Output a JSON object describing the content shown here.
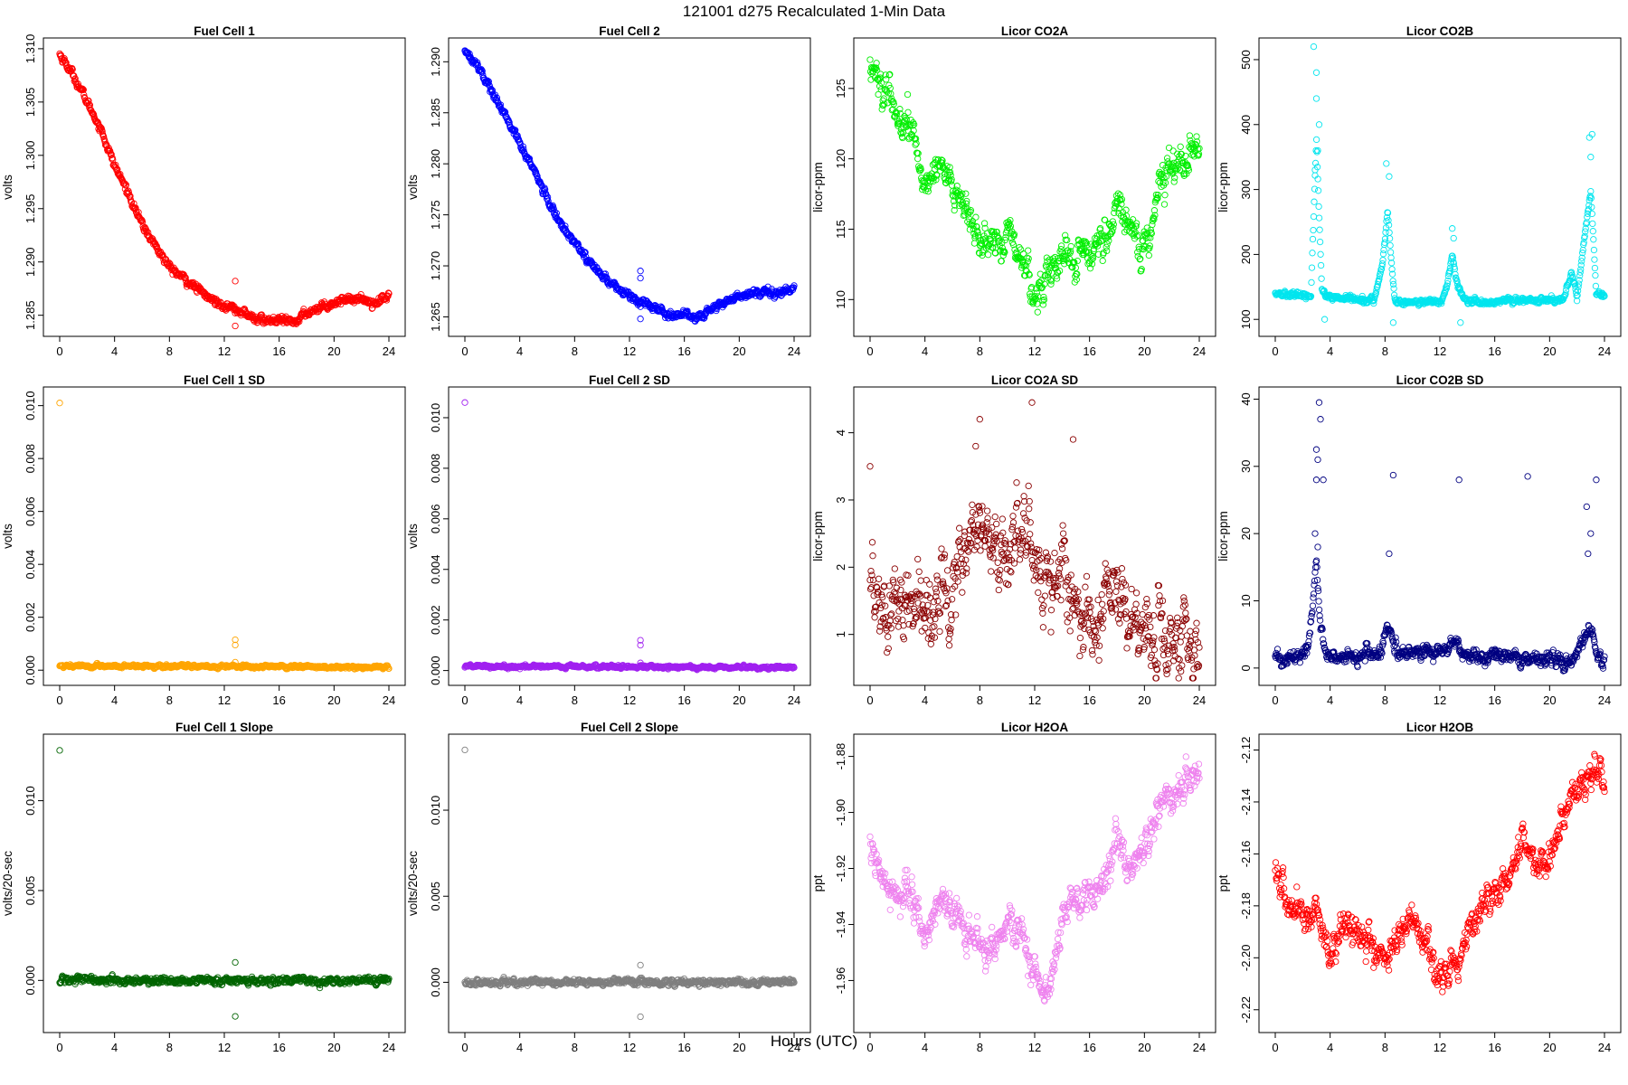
{
  "figure": {
    "title": "121001   d275   Recalculated 1-Min Data",
    "xlabel": "Hours (UTC)"
  },
  "chart_data": [
    {
      "type": "scatter",
      "title": "Fuel Cell 1",
      "ylabel": "volts",
      "color": "#ff0000",
      "xlim": [
        0,
        24
      ],
      "ylim": [
        1.2837,
        1.3105
      ],
      "xticks": [
        "0",
        "4",
        "8",
        "12",
        "16",
        "20",
        "24"
      ],
      "yticks": [
        "1.285",
        "1.290",
        "1.295",
        "1.300",
        "1.305",
        "1.310"
      ],
      "keypoints": [
        [
          0,
          1.3095
        ],
        [
          1,
          1.3075
        ],
        [
          2,
          1.305
        ],
        [
          3,
          1.3025
        ],
        [
          4,
          1.299
        ],
        [
          5,
          1.2965
        ],
        [
          6,
          1.2935
        ],
        [
          7,
          1.2915
        ],
        [
          8,
          1.2895
        ],
        [
          9,
          1.2885
        ],
        [
          10,
          1.2875
        ],
        [
          11,
          1.2865
        ],
        [
          12,
          1.286
        ],
        [
          13,
          1.2855
        ],
        [
          14,
          1.2848
        ],
        [
          15,
          1.2845
        ],
        [
          16,
          1.2845
        ],
        [
          17,
          1.2843
        ],
        [
          18,
          1.2852
        ],
        [
          19,
          1.2858
        ],
        [
          20,
          1.2862
        ],
        [
          21,
          1.2866
        ],
        [
          22,
          1.2865
        ],
        [
          23,
          1.2862
        ],
        [
          24,
          1.2868
        ]
      ],
      "noise": 0.00025,
      "outliers": [
        [
          12.8,
          1.2882
        ],
        [
          12.8,
          1.2852
        ],
        [
          12.8,
          1.284
        ]
      ]
    },
    {
      "type": "scatter",
      "title": "Fuel Cell 2",
      "ylabel": "volts",
      "color": "#0000ff",
      "xlim": [
        0,
        24
      ],
      "ylim": [
        1.2638,
        1.2918
      ],
      "xticks": [
        "0",
        "4",
        "8",
        "12",
        "16",
        "20",
        "24"
      ],
      "yticks": [
        "1.265",
        "1.270",
        "1.275",
        "1.280",
        "1.285",
        "1.290"
      ],
      "keypoints": [
        [
          0,
          1.2912
        ],
        [
          1,
          1.2895
        ],
        [
          2,
          1.287
        ],
        [
          3,
          1.2845
        ],
        [
          4,
          1.282
        ],
        [
          5,
          1.2795
        ],
        [
          6,
          1.2765
        ],
        [
          7,
          1.274
        ],
        [
          8,
          1.2725
        ],
        [
          9,
          1.2705
        ],
        [
          10,
          1.269
        ],
        [
          11,
          1.268
        ],
        [
          12,
          1.267
        ],
        [
          13,
          1.2665
        ],
        [
          14,
          1.2658
        ],
        [
          15,
          1.2652
        ],
        [
          16,
          1.2652
        ],
        [
          17,
          1.265
        ],
        [
          18,
          1.2658
        ],
        [
          19,
          1.2665
        ],
        [
          20,
          1.267
        ],
        [
          21,
          1.2673
        ],
        [
          22,
          1.2677
        ],
        [
          23,
          1.2672
        ],
        [
          24,
          1.268
        ]
      ],
      "noise": 0.00025,
      "outliers": [
        [
          12.8,
          1.2695
        ],
        [
          12.8,
          1.2688
        ],
        [
          12.8,
          1.266
        ],
        [
          12.8,
          1.2648
        ]
      ]
    },
    {
      "type": "scatter",
      "title": "Licor CO2A",
      "ylabel": "licor-ppm",
      "color": "#00ee00",
      "xlim": [
        0,
        24
      ],
      "ylim": [
        107.9,
        128.2
      ],
      "xticks": [
        "0",
        "4",
        "8",
        "12",
        "16",
        "20",
        "24"
      ],
      "yticks": [
        "110",
        "115",
        "120",
        "125"
      ],
      "keypoints": [
        [
          0,
          127
        ],
        [
          1,
          124.5
        ],
        [
          2,
          123
        ],
        [
          3,
          122
        ],
        [
          4,
          118
        ],
        [
          5,
          120
        ],
        [
          6,
          118
        ],
        [
          7,
          116
        ],
        [
          8,
          114
        ],
        [
          9,
          114
        ],
        [
          10,
          114.5
        ],
        [
          11,
          113
        ],
        [
          12,
          110
        ],
        [
          13,
          112
        ],
        [
          14,
          113
        ],
        [
          15,
          113
        ],
        [
          16,
          113.5
        ],
        [
          17,
          114
        ],
        [
          18,
          116.5
        ],
        [
          19,
          115.5
        ],
        [
          20,
          113
        ],
        [
          21,
          118
        ],
        [
          22,
          120
        ],
        [
          23,
          120
        ],
        [
          24,
          120.5
        ]
      ],
      "noise": 0.8,
      "outliers": []
    },
    {
      "type": "scatter",
      "title": "Licor CO2B",
      "ylabel": "licor-ppm",
      "color": "#00e5ee",
      "xlim": [
        0,
        24
      ],
      "ylim": [
        85,
        525
      ],
      "xticks": [
        "0",
        "4",
        "8",
        "12",
        "16",
        "20",
        "24"
      ],
      "yticks": [
        "100",
        "200",
        "300",
        "400",
        "500"
      ],
      "keypoints": [
        [
          0,
          140
        ],
        [
          2,
          136
        ],
        [
          2.6,
          136
        ],
        [
          3.0,
          380
        ],
        [
          3.4,
          140
        ],
        [
          4,
          133
        ],
        [
          7.2,
          130
        ],
        [
          7.8,
          180
        ],
        [
          8.2,
          265
        ],
        [
          8.7,
          130
        ],
        [
          9,
          126
        ],
        [
          12,
          126
        ],
        [
          12.5,
          150
        ],
        [
          12.9,
          200
        ],
        [
          13.3,
          150
        ],
        [
          14,
          126
        ],
        [
          17,
          128
        ],
        [
          20,
          130
        ],
        [
          21,
          132
        ],
        [
          21.6,
          170
        ],
        [
          22,
          135
        ],
        [
          22.5,
          220
        ],
        [
          23,
          300
        ],
        [
          23.4,
          140
        ],
        [
          24,
          135
        ]
      ],
      "noise": 3,
      "outliers": [
        [
          2.8,
          520
        ],
        [
          3.0,
          480
        ],
        [
          3.0,
          440
        ],
        [
          3.2,
          400
        ],
        [
          3.1,
          360
        ],
        [
          2.9,
          330
        ],
        [
          8.1,
          340
        ],
        [
          8.3,
          320
        ],
        [
          12.9,
          240
        ],
        [
          13.0,
          225
        ],
        [
          23.1,
          385
        ],
        [
          22.9,
          380
        ],
        [
          23.0,
          350
        ],
        [
          3.6,
          100
        ],
        [
          13.5,
          95
        ],
        [
          8.6,
          95
        ]
      ]
    },
    {
      "type": "scatter",
      "title": "Fuel Cell 1 SD",
      "ylabel": "volts",
      "color": "#ffa500",
      "xlim": [
        0,
        24
      ],
      "ylim": [
        -0.0003,
        0.0105
      ],
      "xticks": [
        "0",
        "4",
        "8",
        "12",
        "16",
        "20",
        "24"
      ],
      "yticks": [
        "0.000",
        "0.002",
        "0.004",
        "0.006",
        "0.008",
        "0.010"
      ],
      "keypoints": [
        [
          0,
          0.00016
        ],
        [
          24,
          0.00012
        ]
      ],
      "noise": 4e-05,
      "outliers": [
        [
          0,
          0.0101
        ],
        [
          12.8,
          0.00115
        ],
        [
          12.8,
          0.00095
        ],
        [
          12.8,
          0.0003
        ]
      ]
    },
    {
      "type": "scatter",
      "title": "Fuel Cell 2 SD",
      "ylabel": "volts",
      "color": "#a020f0",
      "xlim": [
        0,
        24
      ],
      "ylim": [
        -0.0003,
        0.011
      ],
      "xticks": [
        "0",
        "4",
        "8",
        "12",
        "16",
        "20",
        "24"
      ],
      "yticks": [
        "0.000",
        "0.002",
        "0.004",
        "0.006",
        "0.008",
        "0.010"
      ],
      "keypoints": [
        [
          0,
          0.00017
        ],
        [
          24,
          0.00012
        ]
      ],
      "noise": 4e-05,
      "outliers": [
        [
          0,
          0.0106
        ],
        [
          12.8,
          0.0012
        ],
        [
          12.8,
          0.001
        ],
        [
          12.8,
          0.0003
        ]
      ]
    },
    {
      "type": "scatter",
      "title": "Licor CO2A SD",
      "ylabel": "licor-ppm",
      "color": "#8b0000",
      "xlim": [
        0,
        24
      ],
      "ylim": [
        0.35,
        4.6
      ],
      "xticks": [
        "0",
        "4",
        "8",
        "12",
        "16",
        "20",
        "24"
      ],
      "yticks": [
        "1",
        "2",
        "3",
        "4"
      ],
      "keypoints": [
        [
          0,
          1.4
        ],
        [
          2,
          1.3
        ],
        [
          4,
          1.5
        ],
        [
          6,
          1.9
        ],
        [
          8,
          2.4
        ],
        [
          10,
          2.2
        ],
        [
          11,
          2.6
        ],
        [
          12,
          2.2
        ],
        [
          13,
          1.8
        ],
        [
          14,
          1.9
        ],
        [
          16,
          1.1
        ],
        [
          18,
          1.6
        ],
        [
          20,
          1.0
        ],
        [
          22,
          1.0
        ],
        [
          24,
          1.0
        ]
      ],
      "noise": 0.38,
      "outliers": [
        [
          0,
          3.5
        ],
        [
          8,
          4.2
        ],
        [
          11.8,
          4.45
        ],
        [
          14.8,
          3.9
        ],
        [
          7.7,
          3.8
        ]
      ]
    },
    {
      "type": "scatter",
      "title": "Licor CO2B SD",
      "ylabel": "licor-ppm",
      "color": "#000080",
      "xlim": [
        0,
        24
      ],
      "ylim": [
        -1.5,
        41
      ],
      "xticks": [
        "0",
        "4",
        "8",
        "12",
        "16",
        "20",
        "24"
      ],
      "yticks": [
        "0",
        "10",
        "20",
        "30",
        "40"
      ],
      "keypoints": [
        [
          0,
          1.5
        ],
        [
          2.2,
          1.5
        ],
        [
          2.6,
          6
        ],
        [
          3.0,
          16
        ],
        [
          3.3,
          6
        ],
        [
          3.8,
          1.5
        ],
        [
          7.5,
          2
        ],
        [
          8.2,
          6
        ],
        [
          9,
          2
        ],
        [
          12.5,
          2.5
        ],
        [
          13,
          4
        ],
        [
          14,
          2
        ],
        [
          21.5,
          1
        ],
        [
          22,
          2.5
        ],
        [
          23,
          6
        ],
        [
          23.5,
          1
        ],
        [
          24,
          1
        ]
      ],
      "noise": 0.7,
      "outliers": [
        [
          3.2,
          39.5
        ],
        [
          3.3,
          37
        ],
        [
          3.0,
          32.5
        ],
        [
          3.1,
          31
        ],
        [
          3.0,
          28
        ],
        [
          3.5,
          28
        ],
        [
          8.6,
          28.7
        ],
        [
          13.4,
          28
        ],
        [
          18.4,
          28.5
        ],
        [
          23.4,
          28
        ],
        [
          22.7,
          24
        ],
        [
          23.0,
          20
        ],
        [
          22.8,
          17
        ],
        [
          8.3,
          17
        ],
        [
          3.1,
          18
        ],
        [
          2.9,
          20
        ]
      ]
    },
    {
      "type": "scatter",
      "title": "Fuel Cell 1 Slope",
      "ylabel": "volts/20-sec",
      "color": "#006400",
      "xlim": [
        0,
        24
      ],
      "ylim": [
        -0.0025,
        0.0134
      ],
      "xticks": [
        "0",
        "4",
        "8",
        "12",
        "16",
        "20",
        "24"
      ],
      "yticks": [
        "0.000",
        "0.005",
        "0.010"
      ],
      "keypoints": [
        [
          0,
          0.0
        ],
        [
          24,
          0.0
        ]
      ],
      "noise": 0.00012,
      "outliers": [
        [
          0,
          0.0128
        ],
        [
          12.8,
          0.001
        ],
        [
          12.8,
          -0.002
        ]
      ]
    },
    {
      "type": "scatter",
      "title": "Fuel Cell 2 Slope",
      "ylabel": "volts/20-sec",
      "color": "#7f7f7f",
      "xlim": [
        0,
        24
      ],
      "ylim": [
        -0.0025,
        0.0141
      ],
      "xticks": [
        "0",
        "4",
        "8",
        "12",
        "16",
        "20",
        "24"
      ],
      "yticks": [
        "0.000",
        "0.005",
        "0.010"
      ],
      "keypoints": [
        [
          0,
          0.0
        ],
        [
          24,
          0.0
        ]
      ],
      "noise": 0.00012,
      "outliers": [
        [
          0,
          0.0135
        ],
        [
          12.8,
          0.001
        ],
        [
          12.8,
          -0.002
        ]
      ]
    },
    {
      "type": "scatter",
      "title": "Licor H2OA",
      "ylabel": "ppt",
      "color": "#ee82ee",
      "xlim": [
        0,
        24
      ],
      "ylim": [
        -1.976,
        -1.874
      ],
      "xticks": [
        "0",
        "4",
        "8",
        "12",
        "16",
        "20",
        "24"
      ],
      "yticks": [
        "-1.96",
        "-1.94",
        "-1.92",
        "-1.90",
        "-1.88"
      ],
      "keypoints": [
        [
          0,
          -1.912
        ],
        [
          1,
          -1.925
        ],
        [
          2,
          -1.93
        ],
        [
          3,
          -1.928
        ],
        [
          4,
          -1.945
        ],
        [
          5,
          -1.93
        ],
        [
          6,
          -1.935
        ],
        [
          7,
          -1.94
        ],
        [
          8,
          -1.948
        ],
        [
          9,
          -1.95
        ],
        [
          10,
          -1.94
        ],
        [
          11,
          -1.945
        ],
        [
          12,
          -1.96
        ],
        [
          13,
          -1.965
        ],
        [
          14,
          -1.94
        ],
        [
          15,
          -1.93
        ],
        [
          16,
          -1.93
        ],
        [
          17,
          -1.925
        ],
        [
          18,
          -1.91
        ],
        [
          19,
          -1.92
        ],
        [
          20,
          -1.915
        ],
        [
          21,
          -1.9
        ],
        [
          22,
          -1.892
        ],
        [
          23,
          -1.89
        ],
        [
          24,
          -1.885
        ]
      ],
      "noise": 0.004,
      "outliers": []
    },
    {
      "type": "scatter",
      "title": "Licor H2OB",
      "ylabel": "ppt",
      "color": "#ff0000",
      "xlim": [
        0,
        24
      ],
      "ylim": [
        -2.226,
        -2.116
      ],
      "xticks": [
        "0",
        "4",
        "8",
        "12",
        "16",
        "20",
        "24"
      ],
      "yticks": [
        "-2.22",
        "-2.20",
        "-2.18",
        "-2.16",
        "-2.14",
        "-2.12"
      ],
      "keypoints": [
        [
          0,
          -2.165
        ],
        [
          1,
          -2.18
        ],
        [
          2,
          -2.185
        ],
        [
          3,
          -2.18
        ],
        [
          4,
          -2.2
        ],
        [
          5,
          -2.185
        ],
        [
          6,
          -2.19
        ],
        [
          7,
          -2.195
        ],
        [
          8,
          -2.2
        ],
        [
          9,
          -2.19
        ],
        [
          10,
          -2.185
        ],
        [
          11,
          -2.195
        ],
        [
          12,
          -2.21
        ],
        [
          13,
          -2.205
        ],
        [
          14,
          -2.19
        ],
        [
          15,
          -2.18
        ],
        [
          16,
          -2.175
        ],
        [
          17,
          -2.17
        ],
        [
          18,
          -2.155
        ],
        [
          19,
          -2.165
        ],
        [
          20,
          -2.165
        ],
        [
          21,
          -2.145
        ],
        [
          22,
          -2.135
        ],
        [
          23,
          -2.13
        ],
        [
          24,
          -2.13
        ]
      ],
      "noise": 0.004,
      "outliers": []
    }
  ]
}
